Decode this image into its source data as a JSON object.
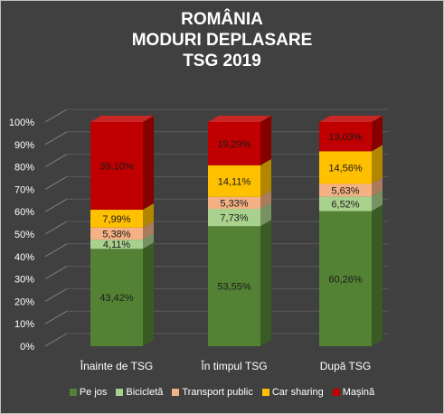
{
  "chart_data": {
    "type": "bar",
    "stacked": true,
    "percent": true,
    "title_lines": [
      "ROMÂNIA",
      "MODURI DEPLASARE",
      "TSG 2019"
    ],
    "categories": [
      "Înainte de TSG",
      "În timpul TSG",
      "După TSG"
    ],
    "series": [
      {
        "name": "Pe jos",
        "color": "#548235",
        "values": [
          43.42,
          53.55,
          60.26
        ],
        "labels": [
          "43,42%",
          "53,55%",
          "60,26%"
        ]
      },
      {
        "name": "Bicicletă",
        "color": "#a9d18e",
        "values": [
          4.11,
          7.73,
          6.52
        ],
        "labels": [
          "4,11%",
          "7,73%",
          "6,52%"
        ]
      },
      {
        "name": "Transport public",
        "color": "#f4b183",
        "values": [
          5.38,
          5.33,
          5.63
        ],
        "labels": [
          "5,38%",
          "5,33%",
          "5,63%"
        ]
      },
      {
        "name": "Car sharing",
        "color": "#ffc000",
        "values": [
          7.99,
          14.11,
          14.56
        ],
        "labels": [
          "7,99%",
          "14,11%",
          "14,56%"
        ]
      },
      {
        "name": "Mașină",
        "color": "#c00000",
        "values": [
          39.1,
          19.29,
          13.03
        ],
        "labels": [
          "39,10%",
          "19,29%",
          "13,03%"
        ]
      }
    ],
    "yticks": [
      "0%",
      "10%",
      "20%",
      "30%",
      "40%",
      "50%",
      "60%",
      "70%",
      "80%",
      "90%",
      "100%"
    ],
    "ylim": [
      0,
      100
    ],
    "grid": true,
    "legend_position": "bottom",
    "style": "3d"
  }
}
